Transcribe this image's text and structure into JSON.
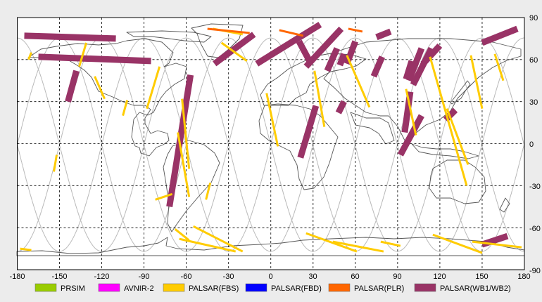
{
  "map": {
    "x_ticks": [
      "-180",
      "-150",
      "-120",
      "-90",
      "-60",
      "-30",
      "0",
      "30",
      "60",
      "90",
      "120",
      "150",
      "180"
    ],
    "y_ticks": [
      "90",
      "60",
      "30",
      "0",
      "-30",
      "-60",
      "-90"
    ],
    "lon_range": [
      -180,
      180
    ],
    "lat_range": [
      -90,
      90
    ],
    "grid": "dashed",
    "colors": {
      "background": "#ffffff",
      "coastline": "#555555",
      "orbit_tracks": "#bdbdbd",
      "PRSIM": "#99cc00",
      "AVNIR-2": "#ff00ff",
      "PALSAR(FBS)": "#ffcc00",
      "PALSAR(FBD)": "#0000ff",
      "PALSAR(PLR)": "#ff6600",
      "PALSAR(WB1/WB2)": "#993366"
    }
  },
  "legend": [
    {
      "label": "PRSIM",
      "color": "#99cc00"
    },
    {
      "label": "AVNIR-2",
      "color": "#ff00ff"
    },
    {
      "label": "PALSAR(FBS)",
      "color": "#ffcc00"
    },
    {
      "label": "PALSAR(FBD)",
      "color": "#0000ff"
    },
    {
      "label": "PALSAR(PLR)",
      "color": "#ff6600"
    },
    {
      "label": "PALSAR(WB1/WB2)",
      "color": "#993366"
    }
  ],
  "swaths": {
    "wb": [
      [
        [
          -165,
          62
        ],
        [
          -85,
          59
        ]
      ],
      [
        [
          -175,
          77
        ],
        [
          -110,
          75
        ]
      ],
      [
        [
          -138,
          52
        ],
        [
          -144,
          30
        ]
      ],
      [
        [
          -57,
          49
        ],
        [
          -72,
          -45
        ]
      ],
      [
        [
          -12,
          78
        ],
        [
          -40,
          57
        ]
      ],
      [
        [
          50,
          82
        ],
        [
          25,
          55
        ]
      ],
      [
        [
          35,
          85
        ],
        [
          -10,
          57
        ]
      ],
      [
        [
          20,
          73
        ],
        [
          28,
          58
        ]
      ],
      [
        [
          47,
          68
        ],
        [
          40,
          52
        ]
      ],
      [
        [
          52,
          64
        ],
        [
          49,
          56
        ]
      ],
      [
        [
          60,
          73
        ],
        [
          54,
          57
        ]
      ],
      [
        [
          85,
          80
        ],
        [
          75,
          76
        ]
      ],
      [
        [
          52,
          30
        ],
        [
          48,
          22
        ]
      ],
      [
        [
          79,
          62
        ],
        [
          73,
          48
        ]
      ],
      [
        [
          100,
          59
        ],
        [
          96,
          46
        ]
      ],
      [
        [
          107,
          68
        ],
        [
          98,
          45
        ]
      ],
      [
        [
          114,
          68
        ],
        [
          101,
          42
        ]
      ],
      [
        [
          32,
          27
        ],
        [
          21,
          -10
        ]
      ],
      [
        [
          99,
          37
        ],
        [
          95,
          8
        ]
      ],
      [
        [
          120,
          70
        ],
        [
          108,
          57
        ]
      ],
      [
        [
          107,
          20
        ],
        [
          92,
          -8
        ]
      ],
      [
        [
          131,
          24
        ],
        [
          124,
          17
        ]
      ],
      [
        [
          175,
          82
        ],
        [
          150,
          72
        ]
      ],
      [
        [
          168,
          -66
        ],
        [
          150,
          -72
        ]
      ]
    ],
    "fbs": [
      [
        [
          -170,
          65
        ],
        [
          -172,
          60
        ]
      ],
      [
        [
          -152,
          -8
        ],
        [
          -154,
          -20
        ]
      ],
      [
        [
          -125,
          48
        ],
        [
          -118,
          32
        ]
      ],
      [
        [
          -131,
          72
        ],
        [
          -136,
          55
        ]
      ],
      [
        [
          -70,
          -36
        ],
        [
          -82,
          -40
        ]
      ],
      [
        [
          -102,
          31
        ],
        [
          -105,
          20
        ]
      ],
      [
        [
          -79,
          55
        ],
        [
          -88,
          25
        ]
      ],
      [
        [
          -63,
          32
        ],
        [
          -58,
          -18
        ]
      ],
      [
        [
          -66,
          8
        ],
        [
          -58,
          -38
        ]
      ],
      [
        [
          -43,
          -28
        ],
        [
          -46,
          -40
        ]
      ],
      [
        [
          -35,
          72
        ],
        [
          -17,
          59
        ]
      ],
      [
        [
          -41,
          82
        ],
        [
          -20,
          78
        ]
      ],
      [
        [
          -3,
          36
        ],
        [
          5,
          -2
        ]
      ],
      [
        [
          31,
          52
        ],
        [
          38,
          12
        ]
      ],
      [
        [
          54,
          63
        ],
        [
          70,
          26
        ]
      ],
      [
        [
          96,
          39
        ],
        [
          103,
          6
        ]
      ],
      [
        [
          113,
          62
        ],
        [
          139,
          -30
        ]
      ],
      [
        [
          125,
          25
        ],
        [
          140,
          -15
        ]
      ],
      [
        [
          142,
          63
        ],
        [
          150,
          25
        ]
      ],
      [
        [
          159,
          64
        ],
        [
          165,
          45
        ]
      ],
      [
        [
          -68,
          -61
        ],
        [
          -58,
          -69
        ]
      ],
      [
        [
          -65,
          -68
        ],
        [
          -25,
          -77
        ]
      ],
      [
        [
          -55,
          -59
        ],
        [
          -20,
          -77
        ]
      ],
      [
        [
          25,
          -64
        ],
        [
          61,
          -77
        ]
      ],
      [
        [
          44,
          -70
        ],
        [
          80,
          -77
        ]
      ],
      [
        [
          78,
          -70
        ],
        [
          92,
          -73
        ]
      ],
      [
        [
          115,
          -65
        ],
        [
          150,
          -78
        ]
      ],
      [
        [
          143,
          -70
        ],
        [
          178,
          -74
        ]
      ],
      [
        [
          -178,
          -75
        ],
        [
          -170,
          -76
        ]
      ]
    ],
    "plr": [
      [
        [
          -45,
          82
        ],
        [
          -15,
          79
        ]
      ],
      [
        [
          6,
          81
        ],
        [
          23,
          77
        ]
      ],
      [
        [
          55,
          82
        ],
        [
          65,
          80
        ]
      ]
    ]
  }
}
